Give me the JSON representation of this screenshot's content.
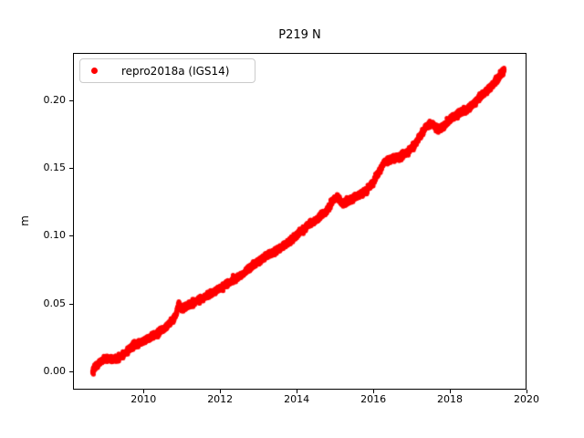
{
  "window": {
    "background": "#ffffff"
  },
  "chart_data": {
    "type": "scatter",
    "title": "P219 N",
    "xlabel": "",
    "ylabel": "m",
    "xlim": [
      2008.16,
      2020.0
    ],
    "ylim": [
      -0.0135,
      0.235
    ],
    "xticks": {
      "values": [
        2010,
        2012,
        2014,
        2016,
        2018,
        2020
      ],
      "labels": [
        "2010",
        "2012",
        "2014",
        "2016",
        "2018",
        "2020"
      ]
    },
    "yticks": {
      "values": [
        0.0,
        0.05,
        0.1,
        0.15,
        0.2
      ],
      "labels": [
        "0.00",
        "0.05",
        "0.10",
        "0.15",
        "0.20"
      ]
    },
    "grid": false,
    "legend": {
      "position": "upper-left",
      "label": "repro2018a (IGS14)",
      "marker": "dot",
      "marker_color": "#ff0000"
    },
    "series": [
      {
        "name": "repro2018a (IGS14)",
        "color": "#ff0000",
        "marker": "point",
        "marker_px": 5,
        "x_start": 2008.67,
        "x_end": 2019.42,
        "cadence_days": 1,
        "noise_sigma_m": 0.0011,
        "seed": 42,
        "trend_anchors": [
          [
            2008.67,
            0.0005
          ],
          [
            2008.8,
            0.005
          ],
          [
            2008.95,
            0.0085
          ],
          [
            2009.05,
            0.0095
          ],
          [
            2009.2,
            0.0085
          ],
          [
            2009.35,
            0.01
          ],
          [
            2009.55,
            0.0145
          ],
          [
            2009.75,
            0.019
          ],
          [
            2009.95,
            0.0215
          ],
          [
            2010.15,
            0.0245
          ],
          [
            2010.35,
            0.028
          ],
          [
            2010.55,
            0.0315
          ],
          [
            2010.75,
            0.037
          ],
          [
            2010.85,
            0.0415
          ],
          [
            2010.92,
            0.05
          ],
          [
            2011.0,
            0.046
          ],
          [
            2011.15,
            0.0485
          ],
          [
            2011.4,
            0.052
          ],
          [
            2011.7,
            0.0565
          ],
          [
            2012.0,
            0.0615
          ],
          [
            2012.3,
            0.0665
          ],
          [
            2012.6,
            0.072
          ],
          [
            2012.9,
            0.079
          ],
          [
            2013.2,
            0.0855
          ],
          [
            2013.5,
            0.0895
          ],
          [
            2013.8,
            0.0955
          ],
          [
            2014.1,
            0.103
          ],
          [
            2014.35,
            0.109
          ],
          [
            2014.6,
            0.1135
          ],
          [
            2014.8,
            0.119
          ],
          [
            2014.95,
            0.1265
          ],
          [
            2015.07,
            0.128
          ],
          [
            2015.2,
            0.124
          ],
          [
            2015.4,
            0.1265
          ],
          [
            2015.6,
            0.13
          ],
          [
            2015.8,
            0.133
          ],
          [
            2016.0,
            0.1395
          ],
          [
            2016.15,
            0.1475
          ],
          [
            2016.3,
            0.1545
          ],
          [
            2016.5,
            0.157
          ],
          [
            2016.7,
            0.1585
          ],
          [
            2016.9,
            0.1615
          ],
          [
            2017.1,
            0.168
          ],
          [
            2017.25,
            0.175
          ],
          [
            2017.4,
            0.181
          ],
          [
            2017.55,
            0.1825
          ],
          [
            2017.7,
            0.178
          ],
          [
            2017.85,
            0.181
          ],
          [
            2018.0,
            0.1865
          ],
          [
            2018.2,
            0.19
          ],
          [
            2018.4,
            0.1925
          ],
          [
            2018.6,
            0.197
          ],
          [
            2018.8,
            0.2025
          ],
          [
            2019.0,
            0.208
          ],
          [
            2019.15,
            0.2125
          ],
          [
            2019.3,
            0.218
          ],
          [
            2019.42,
            0.2225
          ]
        ]
      }
    ]
  }
}
